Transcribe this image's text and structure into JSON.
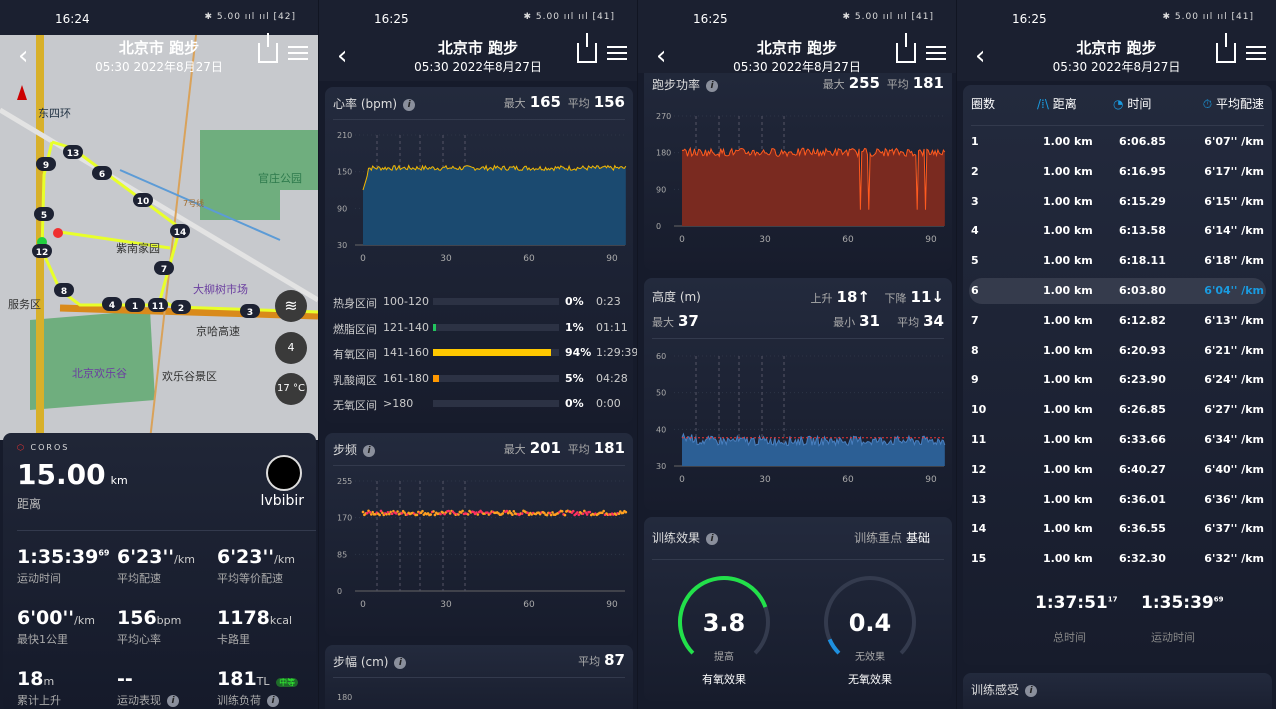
{
  "common": {
    "title": "北京市 跑步",
    "subtitle": "05:30 2022年8月27日",
    "status_icons": "✱ 5.00 ııl ııl"
  },
  "panel1": {
    "time": "16:24",
    "battery": "42",
    "map": {
      "labels": [
        "东四环",
        "官庄公园",
        "紫南家园",
        "大柳树市场",
        "服务区",
        "北京欢乐谷",
        "欢乐谷景区",
        "京哈高速",
        "7号线"
      ],
      "temperature": "17 °C",
      "compass": "4",
      "lap_markers": [
        "13",
        "9",
        "6",
        "10",
        "5",
        "14",
        "12",
        "7",
        "8",
        "4",
        "1",
        "11",
        "2",
        "3"
      ]
    },
    "brand": "COROS",
    "distance": "15.00",
    "distance_unit": "km",
    "distance_label": "距离",
    "username": "lvbibir",
    "metrics": [
      {
        "value": "1:35:39",
        "sup": "69",
        "unit": "",
        "label": "运动时间"
      },
      {
        "value": "6'23''",
        "unit": "/km",
        "label": "平均配速"
      },
      {
        "value": "6'23''",
        "unit": "/km",
        "label": "平均等价配速"
      },
      {
        "value": "6'00''",
        "unit": "/km",
        "label": "最快1公里"
      },
      {
        "value": "156",
        "unit": "bpm",
        "label": "平均心率"
      },
      {
        "value": "1178",
        "unit": "kcal",
        "label": "卡路里"
      },
      {
        "value": "18",
        "unit": "m",
        "label": "累计上升"
      },
      {
        "value": "--",
        "unit": "",
        "label": "运动表现"
      },
      {
        "value": "181",
        "unit": "TL",
        "label": "训练负荷",
        "badge": "中等"
      }
    ]
  },
  "panel2": {
    "time": "16:25",
    "battery": "41",
    "heart": {
      "title": "心率 (bpm)",
      "max_label": "最大",
      "max": "165",
      "avg_label": "平均",
      "avg": "156",
      "y_ticks": [
        "210",
        "150",
        "90",
        "30"
      ],
      "x_ticks": [
        "0",
        "30",
        "60",
        "90"
      ],
      "color": "#f5b800"
    },
    "zones": [
      {
        "name": "热身区间",
        "range": "100-120",
        "pct": "0%",
        "time": "0:23",
        "fill": 0,
        "color": "#888"
      },
      {
        "name": "燃脂区间",
        "range": "121-140",
        "pct": "1%",
        "time": "01:11",
        "fill": 1,
        "color": "#22c55e"
      },
      {
        "name": "有氧区间",
        "range": "141-160",
        "pct": "94%",
        "time": "1:29:39",
        "fill": 94,
        "color": "#ffc800"
      },
      {
        "name": "乳酸阈区",
        "range": "161-180",
        "pct": "5%",
        "time": "04:28",
        "fill": 5,
        "color": "#ff9800"
      },
      {
        "name": "无氧区间",
        "range": ">180",
        "pct": "0%",
        "time": "0:00",
        "fill": 0,
        "color": "#888"
      }
    ],
    "cadence": {
      "title": "步频",
      "max_label": "最大",
      "max": "201",
      "avg_label": "平均",
      "avg": "181",
      "y_ticks": [
        "255",
        "170",
        "85",
        "0"
      ],
      "x_ticks": [
        "0",
        "30",
        "60",
        "90"
      ]
    },
    "stride": {
      "title": "步幅 (cm)",
      "avg_label": "平均",
      "avg": "87",
      "y_ticks": [
        "180"
      ]
    }
  },
  "panel3": {
    "time": "16:25",
    "battery": "41",
    "power": {
      "title": "跑步功率",
      "max_label": "最大",
      "max": "255",
      "avg_label": "平均",
      "avg": "181",
      "y_ticks": [
        "270",
        "180",
        "90",
        "0"
      ],
      "x_ticks": [
        "0",
        "30",
        "60",
        "90"
      ],
      "color": "#ff5a1f"
    },
    "altitude": {
      "title": "高度 (m)",
      "up_label": "上升",
      "up": "18↑",
      "down_label": "下降",
      "down": "11↓",
      "max_label": "最大",
      "max": "37",
      "min_label": "最小",
      "min": "31",
      "avg_label": "平均",
      "avg": "34",
      "y_ticks": [
        "60",
        "50",
        "40",
        "30"
      ],
      "x_ticks": [
        "0",
        "30",
        "60",
        "90"
      ]
    },
    "effect": {
      "title": "训练效果",
      "focus_label": "训练重点",
      "focus": "基础",
      "aerobic": {
        "value": "3.8",
        "status": "提高",
        "label": "有氧效果",
        "fraction": 0.76,
        "color": "#22e04a"
      },
      "anaerobic": {
        "value": "0.4",
        "status": "无效果",
        "label": "无氧效果",
        "fraction": 0.08,
        "color": "#1e90e0"
      }
    }
  },
  "panel4": {
    "time": "16:25",
    "battery": "41",
    "headers": [
      "圈数",
      "距离",
      "时间",
      "平均配速"
    ],
    "laps": [
      [
        "1",
        "1.00 km",
        "6:06.85",
        "6'07'' /km"
      ],
      [
        "2",
        "1.00 km",
        "6:16.95",
        "6'17'' /km"
      ],
      [
        "3",
        "1.00 km",
        "6:15.29",
        "6'15'' /km"
      ],
      [
        "4",
        "1.00 km",
        "6:13.58",
        "6'14'' /km"
      ],
      [
        "5",
        "1.00 km",
        "6:18.11",
        "6'18'' /km"
      ],
      [
        "6",
        "1.00 km",
        "6:03.80",
        "6'04'' /km"
      ],
      [
        "7",
        "1.00 km",
        "6:12.82",
        "6'13'' /km"
      ],
      [
        "8",
        "1.00 km",
        "6:20.93",
        "6'21'' /km"
      ],
      [
        "9",
        "1.00 km",
        "6:23.90",
        "6'24'' /km"
      ],
      [
        "10",
        "1.00 km",
        "6:26.85",
        "6'27'' /km"
      ],
      [
        "11",
        "1.00 km",
        "6:33.66",
        "6'34'' /km"
      ],
      [
        "12",
        "1.00 km",
        "6:40.27",
        "6'40'' /km"
      ],
      [
        "13",
        "1.00 km",
        "6:36.01",
        "6'36'' /km"
      ],
      [
        "14",
        "1.00 km",
        "6:36.55",
        "6'37'' /km"
      ],
      [
        "15",
        "1.00 km",
        "6:32.30",
        "6'32'' /km"
      ]
    ],
    "highlight_lap": "6",
    "total_time": "1:37:51",
    "total_time_sup": "17",
    "total_label": "总时间",
    "moving_time": "1:35:39",
    "moving_time_sup": "69",
    "moving_label": "运动时间",
    "feel_title": "训练感受",
    "accent": "#1a9be0"
  }
}
